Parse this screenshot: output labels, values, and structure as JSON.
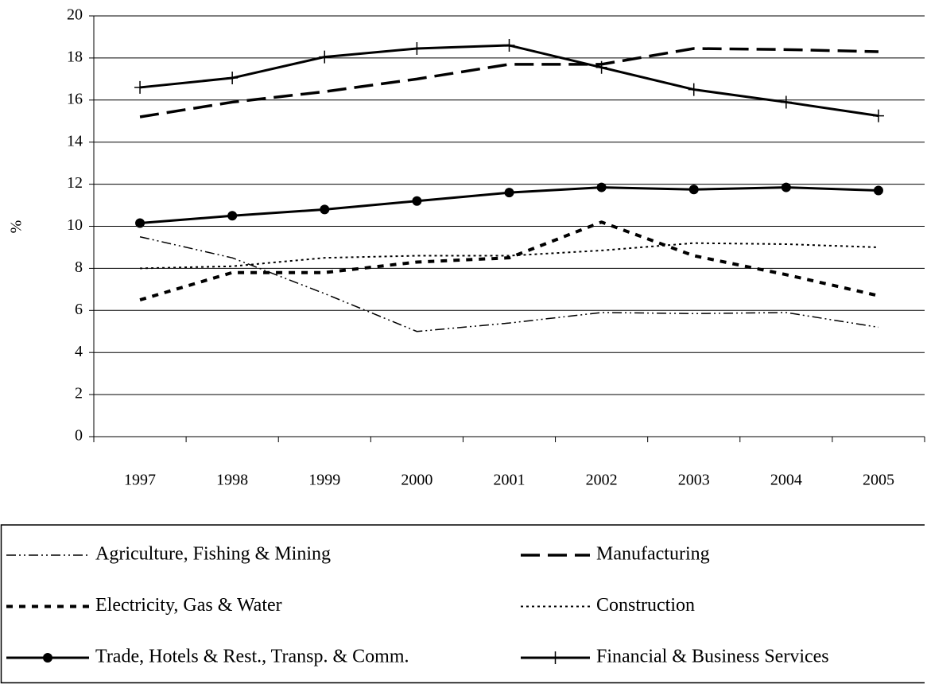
{
  "chart_data": {
    "type": "line",
    "y_label": "%",
    "categories": [
      "1997",
      "1998",
      "1999",
      "2000",
      "2001",
      "2002",
      "2003",
      "2004",
      "2005"
    ],
    "series": [
      {
        "name": "Agriculture, Fishing & Mining",
        "color": "#000000",
        "dash": "12 4 2 4 2 4",
        "width": 1.5,
        "marker": "none",
        "values": [
          9.5,
          8.5,
          6.8,
          5.0,
          5.4,
          5.9,
          5.85,
          5.9,
          5.2
        ]
      },
      {
        "name": "Manufacturing",
        "color": "#000000",
        "dash": "24 10",
        "width": 3.5,
        "marker": "none",
        "values": [
          15.2,
          15.9,
          16.4,
          17.0,
          17.7,
          17.7,
          18.45,
          18.4,
          18.3
        ]
      },
      {
        "name": "Electricity, Gas & Water",
        "color": "#000000",
        "dash": "8 8",
        "width": 4,
        "marker": "none",
        "values": [
          6.5,
          7.8,
          7.8,
          8.3,
          8.5,
          10.2,
          8.6,
          7.7,
          6.7
        ]
      },
      {
        "name": "Construction",
        "color": "#000000",
        "dash": "3 4",
        "width": 2,
        "marker": "none",
        "values": [
          8.0,
          8.1,
          8.5,
          8.6,
          8.6,
          8.85,
          9.2,
          9.15,
          9.0
        ]
      },
      {
        "name": "Trade, Hotels & Rest., Transp. & Comm.",
        "color": "#000000",
        "dash": "none",
        "width": 3,
        "marker": "circle",
        "values": [
          10.15,
          10.5,
          10.8,
          11.2,
          11.6,
          11.85,
          11.75,
          11.85,
          11.7
        ]
      },
      {
        "name": "Financial & Business Services",
        "color": "#000000",
        "dash": "none",
        "width": 3,
        "marker": "plus",
        "values": [
          16.6,
          17.05,
          18.05,
          18.45,
          18.6,
          17.55,
          16.5,
          15.9,
          15.25
        ]
      }
    ],
    "ylim": [
      0,
      20
    ],
    "yticks": [
      0,
      2,
      4,
      6,
      8,
      10,
      12,
      14,
      16,
      18,
      20
    ],
    "grid": true,
    "legend": "bottom"
  }
}
